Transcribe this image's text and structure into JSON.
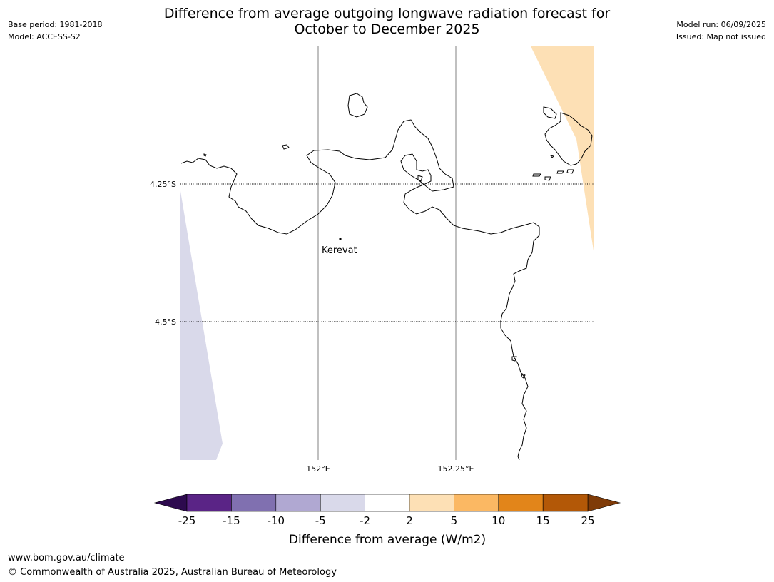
{
  "header": {
    "title_line1": "Difference from average outgoing longwave radiation forecast for",
    "title_line2": "October to December 2025",
    "base_period": "Base period: 1981-2018",
    "model": "Model: ACCESS-S2",
    "model_run": "Model run: 06/09/2025",
    "issued": "Issued: Map not issued"
  },
  "map": {
    "lat_labels": [
      "4.25°S",
      "4.5°S"
    ],
    "lon_labels": [
      "152°E",
      "152.25°E"
    ],
    "place": {
      "name": "Kerevat"
    }
  },
  "colorbar": {
    "title": "Difference from average (W/m2)",
    "ticks": [
      "-25",
      "-15",
      "-10",
      "-5",
      "-2",
      "2",
      "5",
      "10",
      "15",
      "25"
    ],
    "colors": {
      "lt_-25": "#2d0a4e",
      "-25_-15": "#5a2486",
      "-15_-10": "#8070b0",
      "-10_-5": "#b0a8d2",
      "-5_-2": "#d9d9ea",
      "-2_2": "#ffffff",
      "2_5": "#fde0b5",
      "5_10": "#fbb863",
      "10_15": "#e2851a",
      "15_25": "#b35807",
      "gt_25": "#7f3b08"
    }
  },
  "footer": {
    "url": "www.bom.gov.au/climate",
    "copyright": "© Commonwealth of Australia 2025, Australian Bureau of Meteorology"
  }
}
